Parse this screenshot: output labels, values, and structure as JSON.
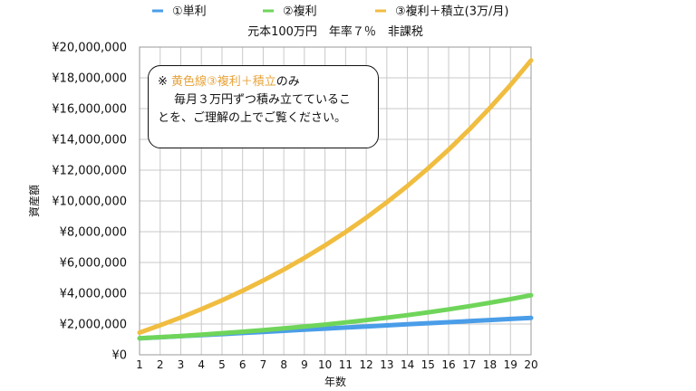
{
  "chart_data": {
    "type": "line",
    "title": "元本100万円　年率７％　非課税",
    "xlabel": "年数",
    "ylabel": "資産額",
    "x": [
      1,
      2,
      3,
      4,
      5,
      6,
      7,
      8,
      9,
      10,
      11,
      12,
      13,
      14,
      15,
      16,
      17,
      18,
      19,
      20
    ],
    "ylim": [
      0,
      20000000
    ],
    "ytick_labels": [
      "¥0",
      "¥2,000,000",
      "¥4,000,000",
      "¥6,000,000",
      "¥8,000,000",
      "¥10,000,000",
      "¥12,000,000",
      "¥14,000,000",
      "¥16,000,000",
      "¥18,000,000",
      "¥20,000,000"
    ],
    "grid": true,
    "legend_position": "top",
    "series": [
      {
        "name": "①単利",
        "color": "#4a9de8",
        "values": [
          1070000,
          1140000,
          1210000,
          1280000,
          1350000,
          1420000,
          1490000,
          1560000,
          1630000,
          1700000,
          1770000,
          1840000,
          1910000,
          1980000,
          2050000,
          2120000,
          2190000,
          2260000,
          2330000,
          2400000
        ]
      },
      {
        "name": "②複利",
        "color": "#6fd55a",
        "values": [
          1070000,
          1145000,
          1225000,
          1311000,
          1403000,
          1501000,
          1606000,
          1718000,
          1838000,
          1967000,
          2105000,
          2252000,
          2410000,
          2579000,
          2759000,
          2952000,
          3159000,
          3380000,
          3617000,
          3870000
        ]
      },
      {
        "name": "③複利＋積立(3万/月)",
        "color": "#f0bd40",
        "values": [
          1442000,
          1915000,
          2422000,
          2964000,
          3544000,
          4165000,
          4829000,
          5540000,
          6300000,
          7113000,
          7983000,
          8914000,
          9910000,
          10976000,
          12117000,
          13337000,
          14643000,
          16040000,
          17535000,
          19135000
        ]
      }
    ]
  },
  "note": {
    "mark": "※",
    "highlight": "黄色線③複利＋積立",
    "line1_rest": "のみ",
    "line2": "毎月３万円ずつ積み立てているこ",
    "line3": "とを、ご理解の上でご覧ください。"
  }
}
